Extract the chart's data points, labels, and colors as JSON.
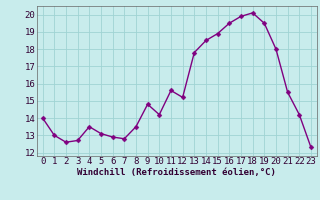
{
  "x": [
    0,
    1,
    2,
    3,
    4,
    5,
    6,
    7,
    8,
    9,
    10,
    11,
    12,
    13,
    14,
    15,
    16,
    17,
    18,
    19,
    20,
    21,
    22,
    23
  ],
  "y": [
    14.0,
    13.0,
    12.6,
    12.7,
    13.5,
    13.1,
    12.9,
    12.8,
    13.5,
    14.8,
    14.2,
    15.6,
    15.2,
    17.8,
    18.5,
    18.9,
    19.5,
    19.9,
    20.1,
    19.5,
    18.0,
    15.5,
    14.2,
    12.3
  ],
  "line_color": "#800080",
  "marker_color": "#800080",
  "bg_color": "#c8ecec",
  "grid_color": "#a0d4d4",
  "xlabel": "Windchill (Refroidissement éolien,°C)",
  "xlim": [
    -0.5,
    23.5
  ],
  "ylim": [
    11.8,
    20.5
  ],
  "yticks": [
    12,
    13,
    14,
    15,
    16,
    17,
    18,
    19,
    20
  ],
  "xticks": [
    0,
    1,
    2,
    3,
    4,
    5,
    6,
    7,
    8,
    9,
    10,
    11,
    12,
    13,
    14,
    15,
    16,
    17,
    18,
    19,
    20,
    21,
    22,
    23
  ],
  "xlabel_fontsize": 6.5,
  "tick_fontsize": 6.5,
  "line_width": 1.0,
  "marker_size": 2.5
}
